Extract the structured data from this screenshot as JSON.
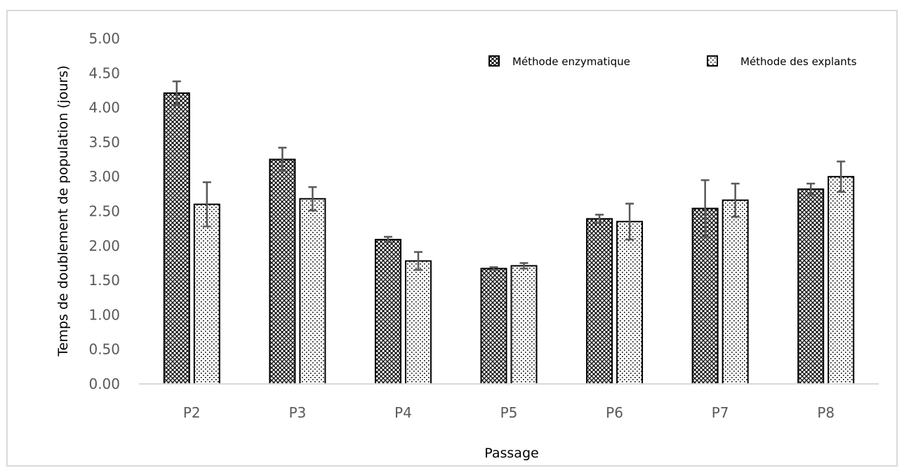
{
  "chart_data": {
    "type": "bar",
    "title": "",
    "xlabel": "Passage",
    "ylabel": "Temps de doublement de population (jours)",
    "ylim": [
      0,
      5
    ],
    "yticks": [
      "0.00",
      "0.50",
      "1.00",
      "1.50",
      "2.00",
      "2.50",
      "3.00",
      "3.50",
      "4.00",
      "4.50",
      "5.00"
    ],
    "categories": [
      "P2",
      "P3",
      "P4",
      "P5",
      "P6",
      "P7",
      "P8"
    ],
    "series": [
      {
        "name": "Méthode enzymatique",
        "pattern": "crosshatch",
        "values": [
          4.21,
          3.25,
          2.09,
          1.67,
          2.39,
          2.54,
          2.82
        ],
        "errors": [
          0.17,
          0.17,
          0.04,
          0.02,
          0.06,
          0.41,
          0.08
        ]
      },
      {
        "name": "Méthode des explants",
        "pattern": "dotted",
        "values": [
          2.6,
          2.68,
          1.78,
          1.71,
          2.35,
          2.66,
          3.0
        ],
        "errors": [
          0.32,
          0.17,
          0.13,
          0.04,
          0.26,
          0.24,
          0.22
        ]
      }
    ],
    "legend_position": "top-right",
    "grid": false,
    "colors": {
      "axis": "#d9d9d9",
      "tick_text": "#595959",
      "bar_edge": "#000000",
      "error_bar": "#595959"
    }
  }
}
